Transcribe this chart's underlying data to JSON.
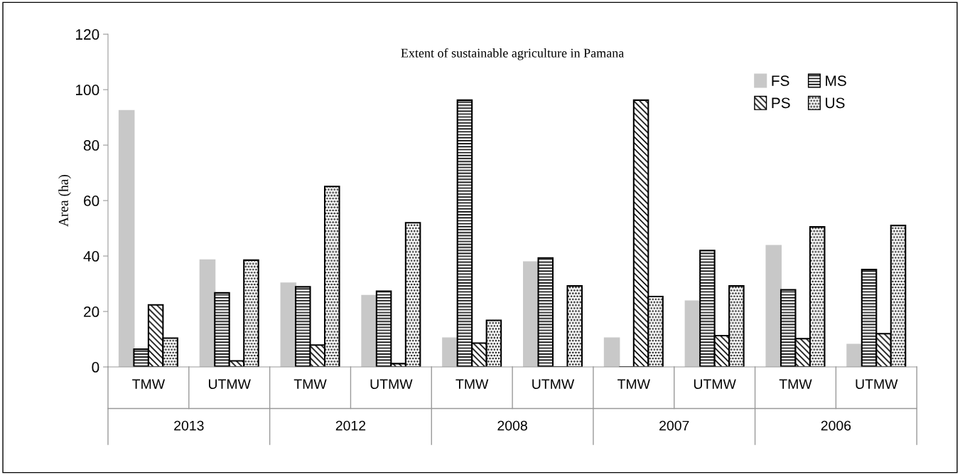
{
  "chart_data": {
    "type": "bar",
    "title": "Extent of sustainable agriculture in Pamana",
    "ylabel": "Area (ha)",
    "categories": [
      "TMW",
      "UTMW",
      "TMW",
      "UTMW",
      "TMW",
      "UTMW",
      "TMW",
      "UTMW",
      "TMW",
      "UTMW"
    ],
    "annotations": [
      "2013",
      "2012",
      "2008",
      "2007",
      "2006"
    ],
    "series": [
      {
        "name": "FS",
        "color": "#c8c8c8",
        "values": [
          92.4,
          38.5,
          30.2,
          25.7,
          10.4,
          37.8,
          10.4,
          23.7,
          43.7,
          8.1
        ]
      },
      {
        "name": "MS",
        "color": "#000000",
        "values": [
          6.4,
          26.7,
          28.9,
          27.3,
          96.2,
          39.3,
          0,
          42.0,
          27.8,
          35.1
        ]
      },
      {
        "name": "PS",
        "color": "#000000",
        "values": [
          22.4,
          2.2,
          7.9,
          1.2,
          8.6,
          0,
          96.2,
          11.3,
          10.2,
          12.0
        ]
      },
      {
        "name": "US",
        "color": "#000000",
        "values": [
          10.4,
          38.5,
          65.1,
          52.0,
          16.8,
          29.2,
          25.4,
          29.2,
          50.5,
          51.0
        ]
      }
    ],
    "ylim": [
      0,
      120
    ],
    "yticks": [
      0,
      20,
      40,
      60,
      80,
      100,
      120
    ],
    "grid": false,
    "legend": "top right"
  }
}
